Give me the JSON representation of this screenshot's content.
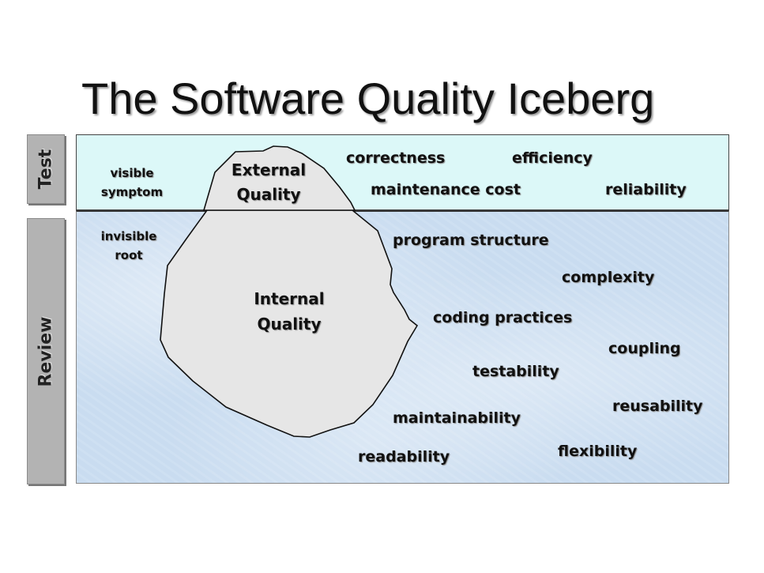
{
  "title": "The Software Quality Iceberg",
  "sections": {
    "test_label": "Test",
    "review_label": "Review"
  },
  "above_water": {
    "left_note": [
      "visible",
      "symptom"
    ],
    "iceberg_tip_label": [
      "External",
      "Quality"
    ],
    "attributes": [
      "correctness",
      "efficiency",
      "maintenance cost",
      "reliability"
    ]
  },
  "below_water": {
    "left_note": [
      "invisible",
      "root"
    ],
    "iceberg_body_label": [
      "Internal",
      "Quality"
    ],
    "attributes": [
      "program structure",
      "complexity",
      "coding practices",
      "coupling",
      "testability",
      "reusability",
      "maintainability",
      "flexibility",
      "readability"
    ]
  },
  "colors": {
    "surface_water": "#dcf8f8",
    "deep_water": "#c9dcf0",
    "iceberg": "#e6e6e6",
    "side_tab": "#b3b3b3"
  }
}
